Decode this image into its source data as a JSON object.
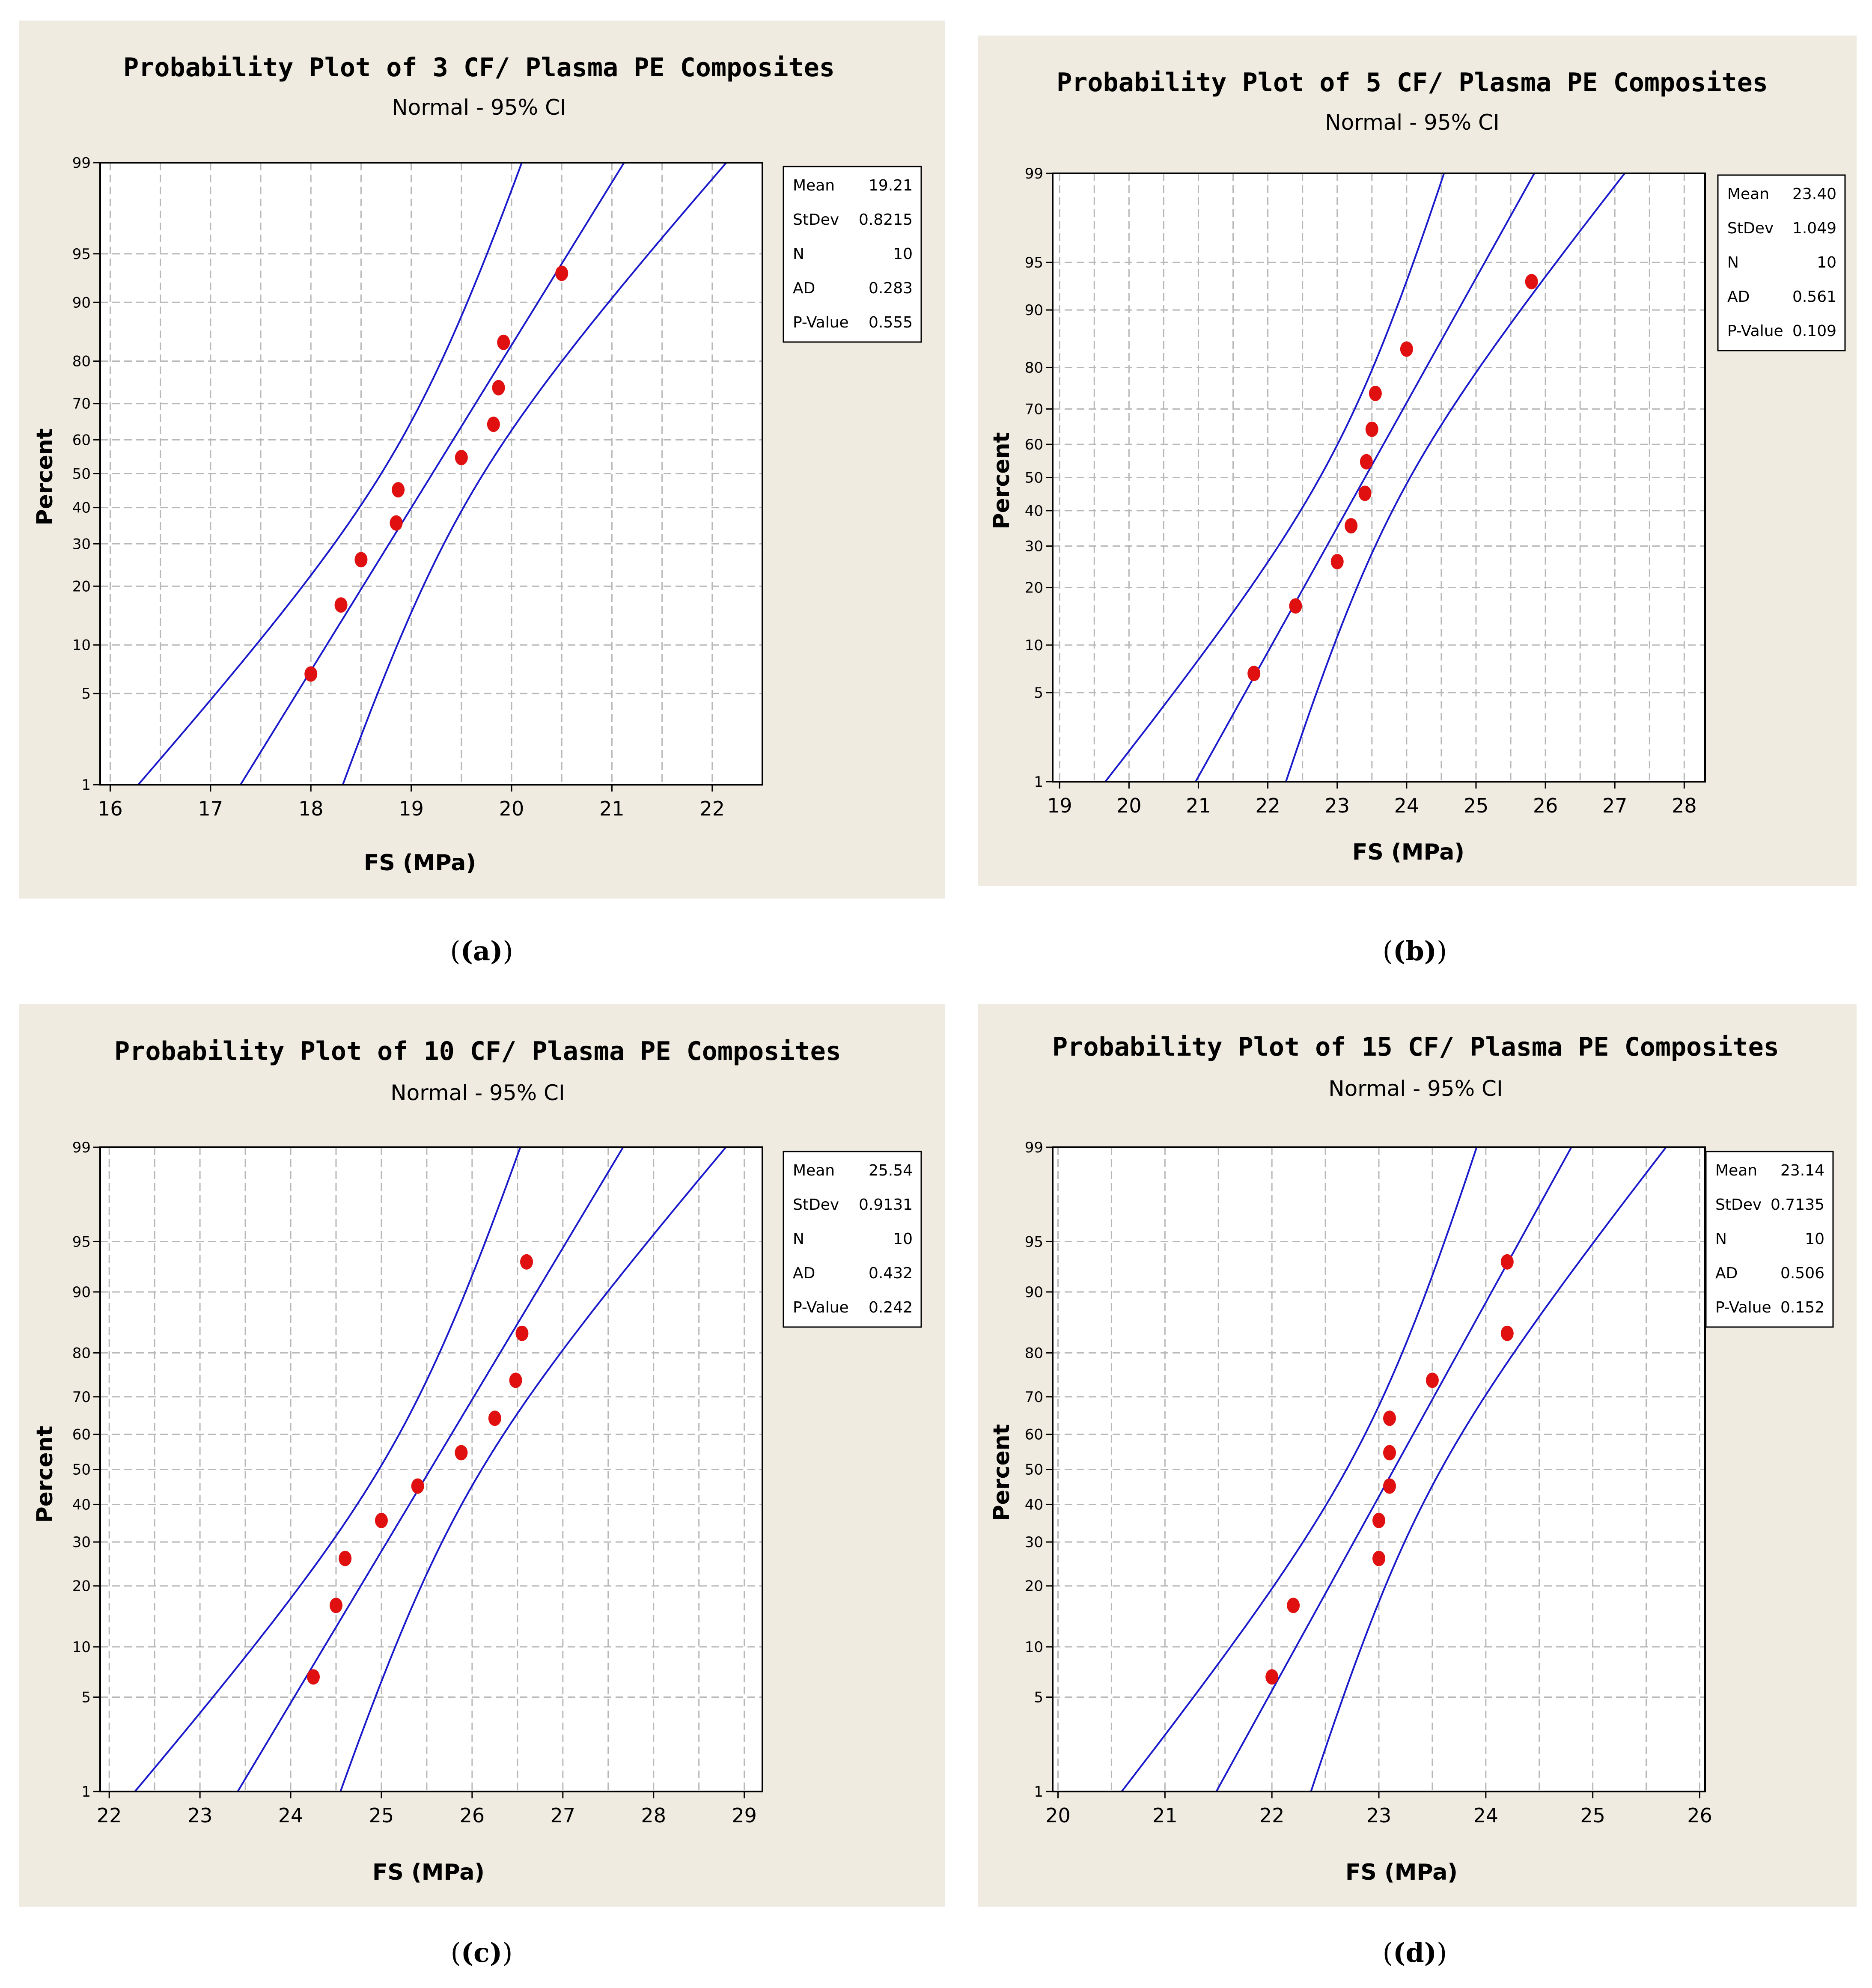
{
  "chart_data": [
    {
      "type": "scatter",
      "title": "Probability Plot of 3 CF/ Plasma PE Composites",
      "subtitle": "Normal - 95% CI",
      "xlabel": "FS (MPa)",
      "ylabel": "Percent",
      "xlim": [
        15.9,
        22.5
      ],
      "xticks": [
        16,
        17,
        18,
        19,
        20,
        21,
        22
      ],
      "yticks": [
        1,
        5,
        10,
        20,
        30,
        40,
        50,
        60,
        70,
        80,
        90,
        95,
        99
      ],
      "stats": [
        {
          "label": "Mean",
          "value": "19.21"
        },
        {
          "label": "StDev",
          "value": "0.8215"
        },
        {
          "label": "N",
          "value": "10"
        },
        {
          "label": "AD",
          "value": "0.283"
        },
        {
          "label": "P-Value",
          "value": "0.555"
        }
      ],
      "points": [
        {
          "x": 18.0,
          "p": 6.7
        },
        {
          "x": 18.3,
          "p": 16.3
        },
        {
          "x": 18.5,
          "p": 26.0
        },
        {
          "x": 18.85,
          "p": 35.6
        },
        {
          "x": 18.87,
          "p": 45.2
        },
        {
          "x": 19.5,
          "p": 54.8
        },
        {
          "x": 19.82,
          "p": 64.4
        },
        {
          "x": 19.87,
          "p": 74.0
        },
        {
          "x": 19.92,
          "p": 83.7
        },
        {
          "x": 20.5,
          "p": 93.3
        }
      ],
      "mean": 19.21,
      "stdev": 0.8215,
      "n": 10,
      "label": "(a)"
    },
    {
      "type": "scatter",
      "title": "Probability Plot of 5 CF/ Plasma PE Composites",
      "subtitle": "Normal - 95% CI",
      "xlabel": "FS (MPa)",
      "ylabel": "Percent",
      "xlim": [
        18.9,
        28.3
      ],
      "xticks": [
        19,
        20,
        21,
        22,
        23,
        24,
        25,
        26,
        27,
        28
      ],
      "yticks": [
        1,
        5,
        10,
        20,
        30,
        40,
        50,
        60,
        70,
        80,
        90,
        95,
        99
      ],
      "stats": [
        {
          "label": "Mean",
          "value": "23.40"
        },
        {
          "label": "StDev",
          "value": "1.049"
        },
        {
          "label": "N",
          "value": "10"
        },
        {
          "label": "AD",
          "value": "0.561"
        },
        {
          "label": "P-Value",
          "value": "0.109"
        }
      ],
      "points": [
        {
          "x": 21.8,
          "p": 6.7
        },
        {
          "x": 22.4,
          "p": 16.3
        },
        {
          "x": 23.0,
          "p": 26.0
        },
        {
          "x": 23.2,
          "p": 35.6
        },
        {
          "x": 23.4,
          "p": 45.2
        },
        {
          "x": 23.42,
          "p": 54.8
        },
        {
          "x": 23.5,
          "p": 64.4
        },
        {
          "x": 23.55,
          "p": 74.0
        },
        {
          "x": 24.0,
          "p": 83.7
        },
        {
          "x": 25.8,
          "p": 93.3
        }
      ],
      "mean": 23.4,
      "stdev": 1.049,
      "n": 10,
      "label": "(b)"
    },
    {
      "type": "scatter",
      "title": "Probability Plot of 10 CF/ Plasma PE Composites",
      "subtitle": "Normal - 95% CI",
      "xlabel": "FS (MPa)",
      "ylabel": "Percent",
      "xlim": [
        21.9,
        29.2
      ],
      "xticks": [
        22,
        23,
        24,
        25,
        26,
        27,
        28,
        29
      ],
      "yticks": [
        1,
        5,
        10,
        20,
        30,
        40,
        50,
        60,
        70,
        80,
        90,
        95,
        99
      ],
      "stats": [
        {
          "label": "Mean",
          "value": "25.54"
        },
        {
          "label": "StDev",
          "value": "0.9131"
        },
        {
          "label": "N",
          "value": "10"
        },
        {
          "label": "AD",
          "value": "0.432"
        },
        {
          "label": "P-Value",
          "value": "0.242"
        }
      ],
      "points": [
        {
          "x": 24.25,
          "p": 6.7
        },
        {
          "x": 24.5,
          "p": 16.3
        },
        {
          "x": 24.6,
          "p": 26.0
        },
        {
          "x": 25.0,
          "p": 35.6
        },
        {
          "x": 25.4,
          "p": 45.2
        },
        {
          "x": 25.88,
          "p": 54.8
        },
        {
          "x": 26.25,
          "p": 64.4
        },
        {
          "x": 26.48,
          "p": 74.0
        },
        {
          "x": 26.55,
          "p": 83.7
        },
        {
          "x": 26.6,
          "p": 93.3
        }
      ],
      "mean": 25.54,
      "stdev": 0.9131,
      "n": 10,
      "label": "(c)"
    },
    {
      "type": "scatter",
      "title": "Probability Plot of 15 CF/ Plasma PE Composites",
      "subtitle": "Normal - 95% CI",
      "xlabel": "FS (MPa)",
      "ylabel": "Percent",
      "xlim": [
        19.95,
        26.05
      ],
      "xticks": [
        20,
        21,
        22,
        23,
        24,
        25,
        26
      ],
      "yticks": [
        1,
        5,
        10,
        20,
        30,
        40,
        50,
        60,
        70,
        80,
        90,
        95,
        99
      ],
      "stats": [
        {
          "label": "Mean",
          "value": "23.14"
        },
        {
          "label": "StDev",
          "value": "0.7135"
        },
        {
          "label": "N",
          "value": "10"
        },
        {
          "label": "AD",
          "value": "0.506"
        },
        {
          "label": "P-Value",
          "value": "0.152"
        }
      ],
      "points": [
        {
          "x": 22.0,
          "p": 6.7
        },
        {
          "x": 22.2,
          "p": 16.3
        },
        {
          "x": 23.0,
          "p": 26.0
        },
        {
          "x": 23.0,
          "p": 35.6
        },
        {
          "x": 23.1,
          "p": 45.2
        },
        {
          "x": 23.1,
          "p": 54.8
        },
        {
          "x": 23.1,
          "p": 64.4
        },
        {
          "x": 23.5,
          "p": 74.0
        },
        {
          "x": 24.2,
          "p": 83.7
        },
        {
          "x": 24.2,
          "p": 93.3
        }
      ],
      "mean": 23.14,
      "stdev": 0.7135,
      "n": 10,
      "label": "(d)"
    }
  ],
  "colors": {
    "panel_bg": "#efebe0",
    "fit_line": "#1a1acc",
    "point": "#e01010",
    "grid": "#b8b8b8"
  }
}
